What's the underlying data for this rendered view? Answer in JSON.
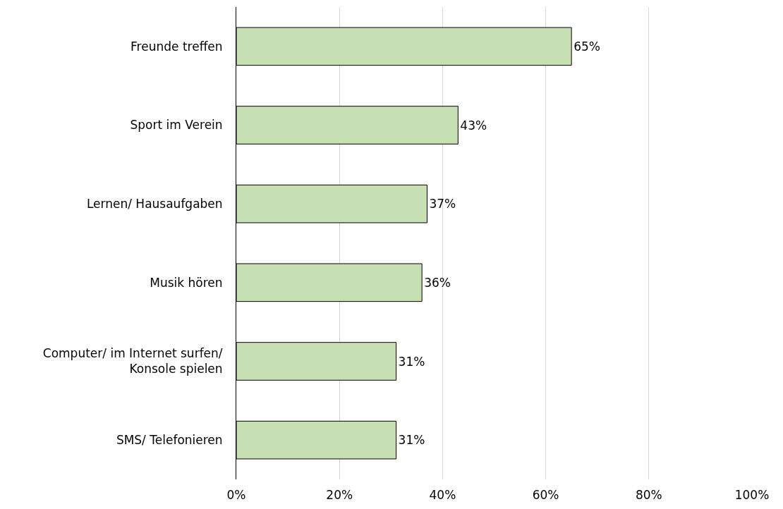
{
  "chart_data": {
    "type": "bar",
    "orientation": "horizontal",
    "categories": [
      "Freunde treffen",
      "Sport im Verein",
      "Lernen/ Hausaufgaben",
      "Musik hören",
      "Computer/ im Internet surfen/ Konsole spielen",
      "SMS/ Telefonieren"
    ],
    "values": [
      65,
      43,
      37,
      36,
      31,
      31
    ],
    "color": "#c6e0b4",
    "value_labels": [
      "65%",
      "43%",
      "37%",
      "36%",
      "31%",
      "31%"
    ],
    "xlim": [
      0,
      100
    ],
    "xticks": [
      {
        "value": 0,
        "label": "0%"
      },
      {
        "value": 20,
        "label": "20%"
      },
      {
        "value": 40,
        "label": "40%"
      },
      {
        "value": 60,
        "label": "60%"
      },
      {
        "value": 80,
        "label": "80%"
      },
      {
        "value": 100,
        "label": "100%"
      }
    ],
    "grid": "x"
  }
}
